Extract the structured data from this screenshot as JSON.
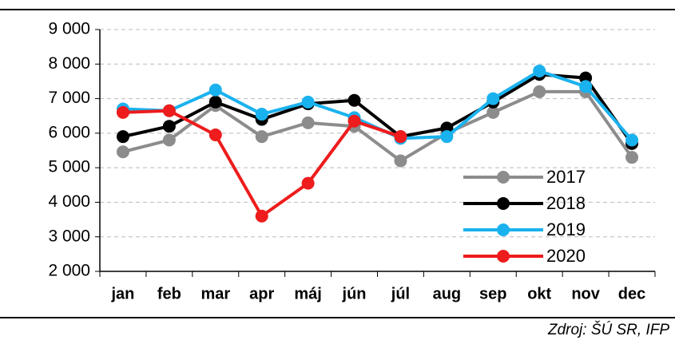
{
  "chart_data": {
    "type": "line",
    "source": "Zdroj:  ŠÚ SR, IFP",
    "categories": [
      "jan",
      "feb",
      "mar",
      "apr",
      "máj",
      "jún",
      "júl",
      "aug",
      "sep",
      "okt",
      "nov",
      "dec"
    ],
    "series": [
      {
        "name": "2017",
        "color": "#8c8c8c",
        "values": [
          5460,
          5800,
          6800,
          5900,
          6300,
          6200,
          5200,
          6000,
          6600,
          7200,
          7200,
          5300
        ]
      },
      {
        "name": "2018",
        "color": "#000000",
        "values": [
          5900,
          6200,
          6900,
          6400,
          6850,
          6950,
          5900,
          6150,
          6900,
          7700,
          7600,
          5700
        ]
      },
      {
        "name": "2019",
        "color": "#1ab2ee",
        "values": [
          6700,
          6650,
          7250,
          6550,
          6900,
          6450,
          5850,
          5900,
          7000,
          7800,
          7350,
          5800
        ]
      },
      {
        "name": "2020",
        "color": "#ee1c1c",
        "values": [
          6600,
          6650,
          5950,
          3600,
          4550,
          6350,
          5900,
          null,
          null,
          null,
          null,
          null
        ]
      }
    ],
    "ylim": [
      2000,
      9000
    ],
    "yticks": [
      {
        "value": 2000,
        "label": "2 000"
      },
      {
        "value": 3000,
        "label": "3 000"
      },
      {
        "value": 4000,
        "label": "4 000"
      },
      {
        "value": 5000,
        "label": "5 000"
      },
      {
        "value": 6000,
        "label": "6 000"
      },
      {
        "value": 7000,
        "label": "7 000"
      },
      {
        "value": 8000,
        "label": "8 000"
      },
      {
        "value": 9000,
        "label": "9 000"
      }
    ],
    "grid": true,
    "legend": "lower right"
  }
}
